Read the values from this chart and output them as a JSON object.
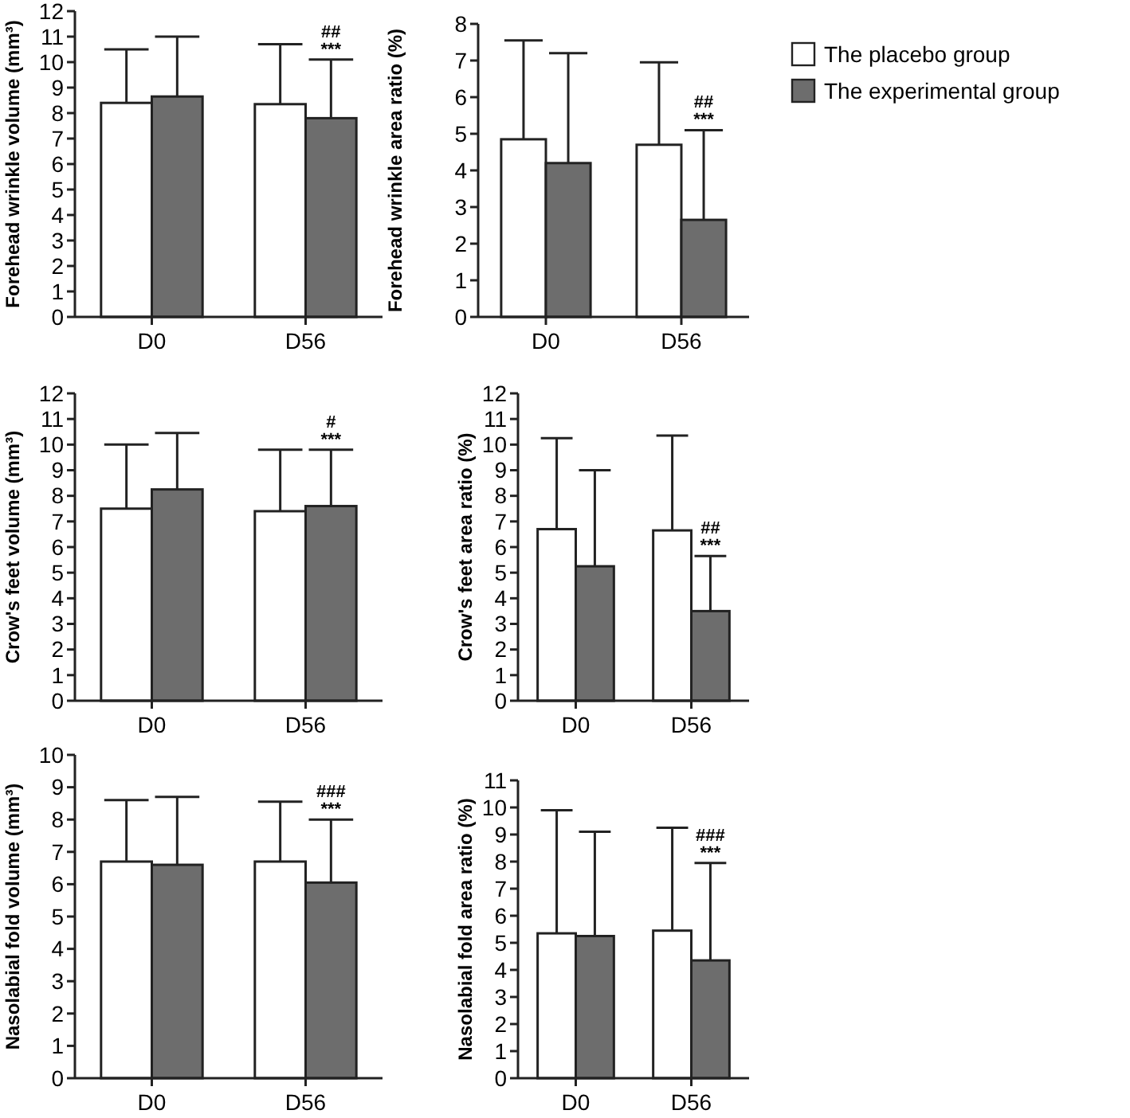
{
  "chart_data": [
    {
      "type": "bar",
      "ylabel": "Forehead wrinkle volume (mm³)",
      "categories": [
        "D0",
        "D56"
      ],
      "ylim": [
        0,
        12
      ],
      "yticks": [
        0,
        1,
        2,
        3,
        4,
        5,
        6,
        7,
        8,
        9,
        10,
        11,
        12
      ],
      "grid": false,
      "legend": false,
      "series": [
        {
          "color": "#ffffff",
          "values": [
            8.4,
            8.35
          ],
          "errors": [
            [
              8.4,
              10.5
            ],
            [
              8.35,
              10.7
            ]
          ]
        },
        {
          "color": "#6d6d6d",
          "values": [
            8.65,
            7.8
          ],
          "errors": [
            [
              8.65,
              11
            ],
            [
              7.8,
              10.1
            ]
          ]
        }
      ],
      "annotations": [
        "***",
        "##"
      ]
    },
    {
      "type": "bar",
      "ylabel": "Forehead wrinkle area ratio (%)",
      "categories": [
        "D0",
        "D56"
      ],
      "ylim": [
        0,
        8
      ],
      "yticks": [
        0,
        1,
        2,
        3,
        4,
        5,
        6,
        7,
        8
      ],
      "grid": false,
      "legend": "right",
      "series": [
        {
          "name": "The placebo group",
          "color": "#ffffff",
          "values": [
            4.85,
            4.7
          ],
          "errors": [
            [
              4.85,
              7.55
            ],
            [
              4.7,
              6.95
            ]
          ]
        },
        {
          "name": "The experimental group",
          "color": "#6d6d6d",
          "values": [
            4.2,
            2.65
          ],
          "errors": [
            [
              4.2,
              7.2
            ],
            [
              2.65,
              5.1
            ]
          ]
        }
      ],
      "annotations": [
        "***",
        "##"
      ]
    },
    {
      "type": "bar",
      "ylabel": "Crow's feet volume (mm³)",
      "categories": [
        "D0",
        "D56"
      ],
      "ylim": [
        0,
        12
      ],
      "yticks": [
        0,
        1,
        2,
        3,
        4,
        5,
        6,
        7,
        8,
        9,
        10,
        11,
        12
      ],
      "grid": false,
      "legend": false,
      "series": [
        {
          "color": "#ffffff",
          "values": [
            7.5,
            7.4
          ],
          "errors": [
            [
              7.5,
              10
            ],
            [
              7.4,
              9.8
            ]
          ]
        },
        {
          "color": "#6d6d6d",
          "values": [
            8.25,
            7.6
          ],
          "errors": [
            [
              8.25,
              10.45
            ],
            [
              7.6,
              9.8
            ]
          ]
        }
      ],
      "annotations": [
        "***",
        "#"
      ]
    },
    {
      "type": "bar",
      "ylabel": "Crow's feet area ratio (%)",
      "categories": [
        "D0",
        "D56"
      ],
      "ylim": [
        0,
        12
      ],
      "yticks": [
        0,
        1,
        2,
        3,
        4,
        5,
        6,
        7,
        8,
        9,
        10,
        11,
        12
      ],
      "grid": false,
      "legend": false,
      "series": [
        {
          "color": "#ffffff",
          "values": [
            6.7,
            6.65
          ],
          "errors": [
            [
              6.7,
              10.25
            ],
            [
              6.65,
              10.35
            ]
          ]
        },
        {
          "color": "#6d6d6d",
          "values": [
            5.25,
            3.5
          ],
          "errors": [
            [
              5.25,
              9
            ],
            [
              3.5,
              5.65
            ]
          ]
        }
      ],
      "annotations": [
        "***",
        "##"
      ]
    },
    {
      "type": "bar",
      "ylabel": "Nasolabial fold volume (mm³)",
      "categories": [
        "D0",
        "D56"
      ],
      "ylim": [
        0,
        10
      ],
      "yticks": [
        0,
        1,
        2,
        3,
        4,
        5,
        6,
        7,
        8,
        9,
        10
      ],
      "grid": false,
      "legend": false,
      "series": [
        {
          "color": "#ffffff",
          "values": [
            6.7,
            6.7
          ],
          "errors": [
            [
              6.7,
              8.6
            ],
            [
              6.7,
              8.55
            ]
          ]
        },
        {
          "color": "#6d6d6d",
          "values": [
            6.6,
            6.05
          ],
          "errors": [
            [
              6.6,
              8.7
            ],
            [
              6.05,
              8
            ]
          ]
        }
      ],
      "annotations": [
        "***",
        "###"
      ]
    },
    {
      "type": "bar",
      "ylabel": "Nasolabial fold area ratio (%)",
      "categories": [
        "D0",
        "D56"
      ],
      "ylim": [
        0,
        11
      ],
      "yticks": [
        0,
        1,
        2,
        3,
        4,
        5,
        6,
        7,
        8,
        9,
        10,
        11
      ],
      "grid": false,
      "legend": false,
      "series": [
        {
          "color": "#ffffff",
          "values": [
            5.35,
            5.45
          ],
          "errors": [
            [
              5.35,
              9.9
            ],
            [
              5.45,
              9.25
            ]
          ]
        },
        {
          "color": "#6d6d6d",
          "values": [
            5.25,
            4.35
          ],
          "errors": [
            [
              5.25,
              9.1
            ],
            [
              4.35,
              7.95
            ]
          ]
        }
      ],
      "annotations": [
        "***",
        "###"
      ]
    }
  ]
}
